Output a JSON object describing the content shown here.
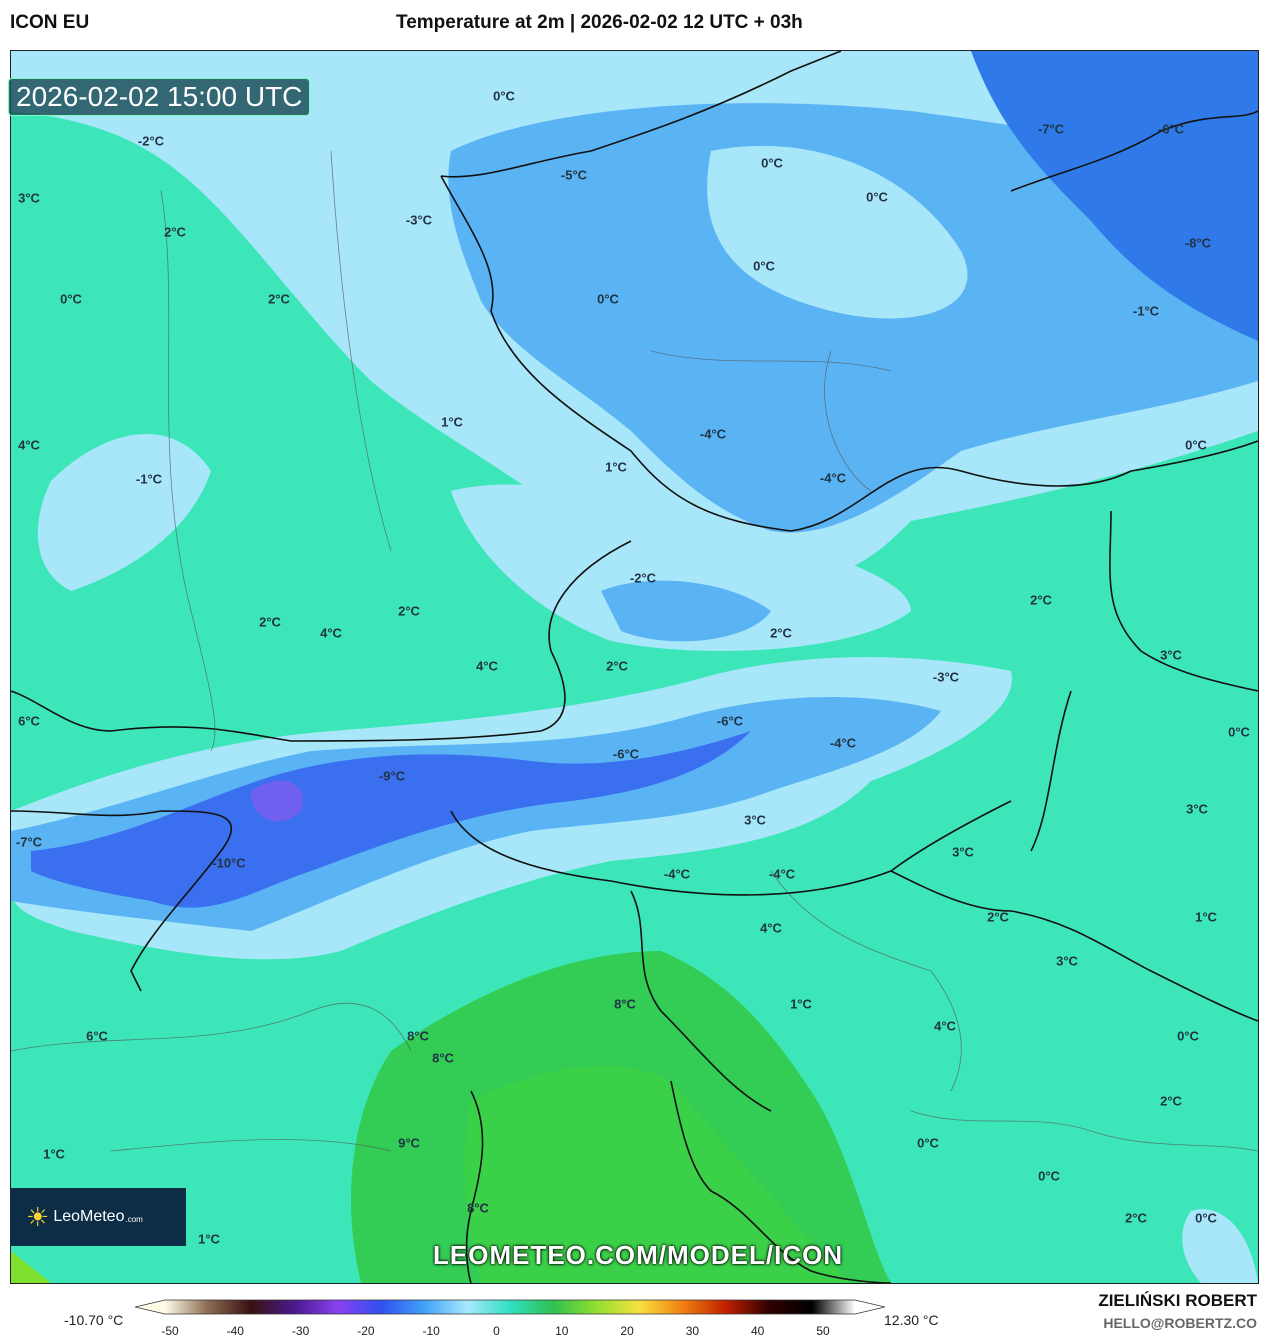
{
  "header": {
    "model": "ICON EU",
    "title": "Temperature at 2m | 2026-02-02 12 UTC + 03h"
  },
  "map": {
    "valid_time": "2026-02-02 15:00 UTC",
    "watermark_url": "LEOMETEO.COM/MODEL/ICON",
    "logo": {
      "name": "LeoMeteo",
      "suffix": ".com"
    },
    "labels": [
      "0°C",
      "-2°C",
      "3°C",
      "2°C",
      "-3°C",
      "-5°C",
      "0°C",
      "0°C",
      "-7°C",
      "-6°C",
      "-8°C",
      "0°C",
      "0°C",
      "0°C",
      "2°C",
      "-1°C",
      "1°C",
      "4°C",
      "-1°C",
      "1°C",
      "-4°C",
      "-4°C",
      "0°C",
      "-2°C",
      "2°C",
      "2°C",
      "4°C",
      "2°C",
      "2°C",
      "3°C",
      "4°C",
      "2°C",
      "-3°C",
      "6°C",
      "-6°C",
      "-4°C",
      "0°C",
      "-6°C",
      "-9°C",
      "3°C",
      "3°C",
      "-7°C",
      "3°C",
      "-10°C",
      "-4°C",
      "-4°C",
      "2°C",
      "1°C",
      "4°C",
      "3°C",
      "8°C",
      "1°C",
      "6°C",
      "8°C",
      "4°C",
      "0°C",
      "8°C",
      "2°C",
      "0°C",
      "9°C",
      "0°C",
      "1°C",
      "8°C",
      "2°C",
      "0°C",
      "1°C"
    ]
  },
  "legend": {
    "min_label": "-10.70 °C",
    "max_label": "12.30 °C",
    "ticks": [
      "-50",
      "-40",
      "-30",
      "-20",
      "-10",
      "0",
      "10",
      "20",
      "30",
      "40",
      "50"
    ],
    "colors": [
      "#fffbe8",
      "#8a6a50",
      "#3a1010",
      "#4a1a90",
      "#8a40f0",
      "#3050f0",
      "#40a0f8",
      "#a8e8ff",
      "#30e0c0",
      "#30c050",
      "#90e030",
      "#f8e040",
      "#f08010",
      "#c02000",
      "#300000",
      "#000000",
      "#ffffff"
    ]
  },
  "credits": {
    "author": "ZIELIŃSKI ROBERT",
    "email": "HELLO@ROBERTZ.CO"
  }
}
